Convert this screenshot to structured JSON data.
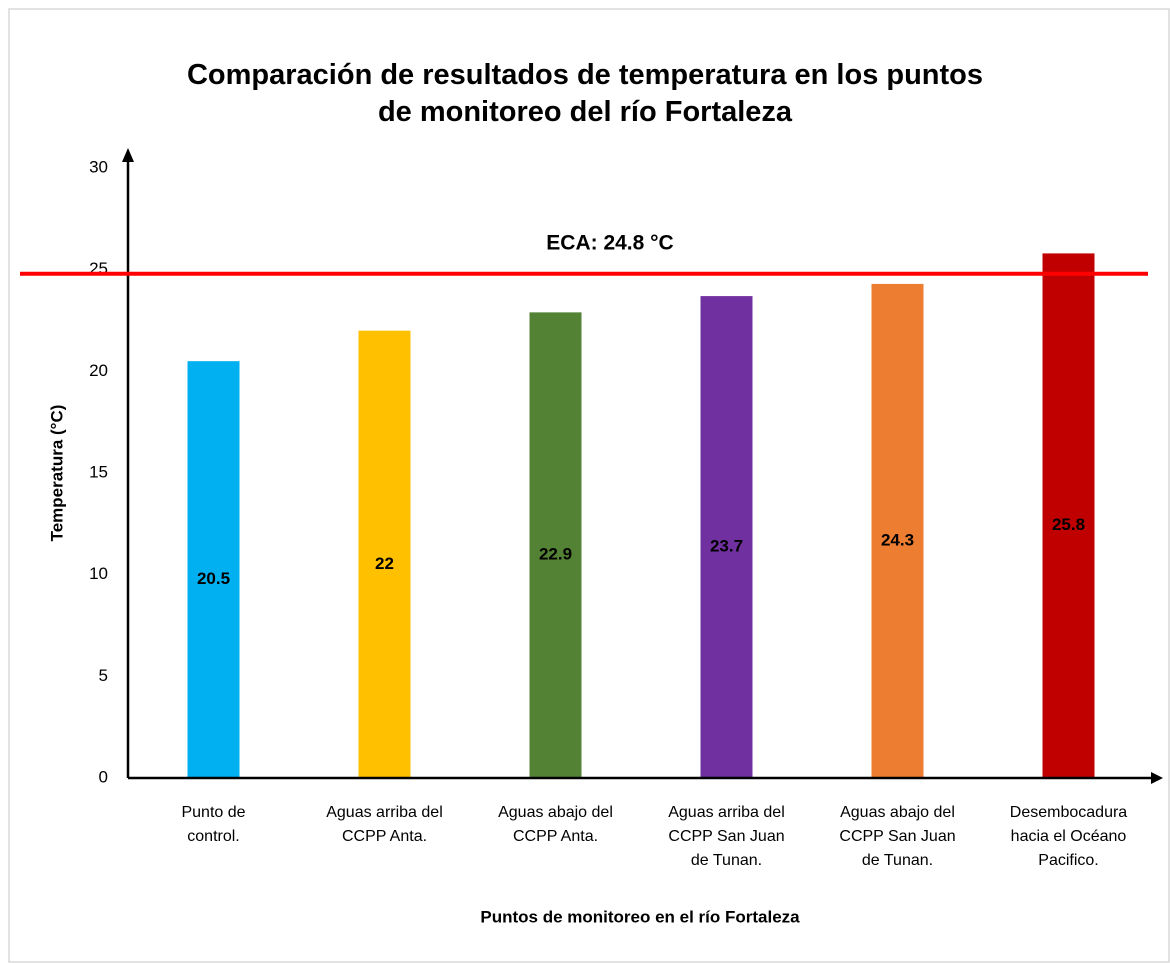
{
  "chart_data": {
    "type": "bar",
    "title": "Comparación de resultados de temperatura en los puntos\nde monitoreo del río Fortaleza",
    "x_label": "Puntos de monitoreo en el río Fortaleza",
    "y_label": "Temperatura (°C)",
    "categories": [
      "Punto de\ncontrol.",
      "Aguas arriba del\nCCPP Anta.",
      "Aguas abajo del\nCCPP Anta.",
      "Aguas arriba del\nCCPP San Juan\nde Tunan.",
      "Aguas abajo del\nCCPP San Juan\nde Tunan.",
      "Desembocadura\nhacia el Océano\nPacifico."
    ],
    "values": [
      20.5,
      22,
      22.9,
      23.7,
      24.3,
      25.8
    ],
    "colors": [
      "#00b0f0",
      "#ffc000",
      "#548235",
      "#7030a0",
      "#ed7d31",
      "#c00000"
    ],
    "ylim": [
      0,
      30
    ],
    "yticks": [
      0,
      5,
      10,
      15,
      20,
      25,
      30
    ],
    "reference_line": {
      "value": 24.8,
      "label": "ECA: 24.8 °C",
      "color": "#ff0000"
    }
  }
}
